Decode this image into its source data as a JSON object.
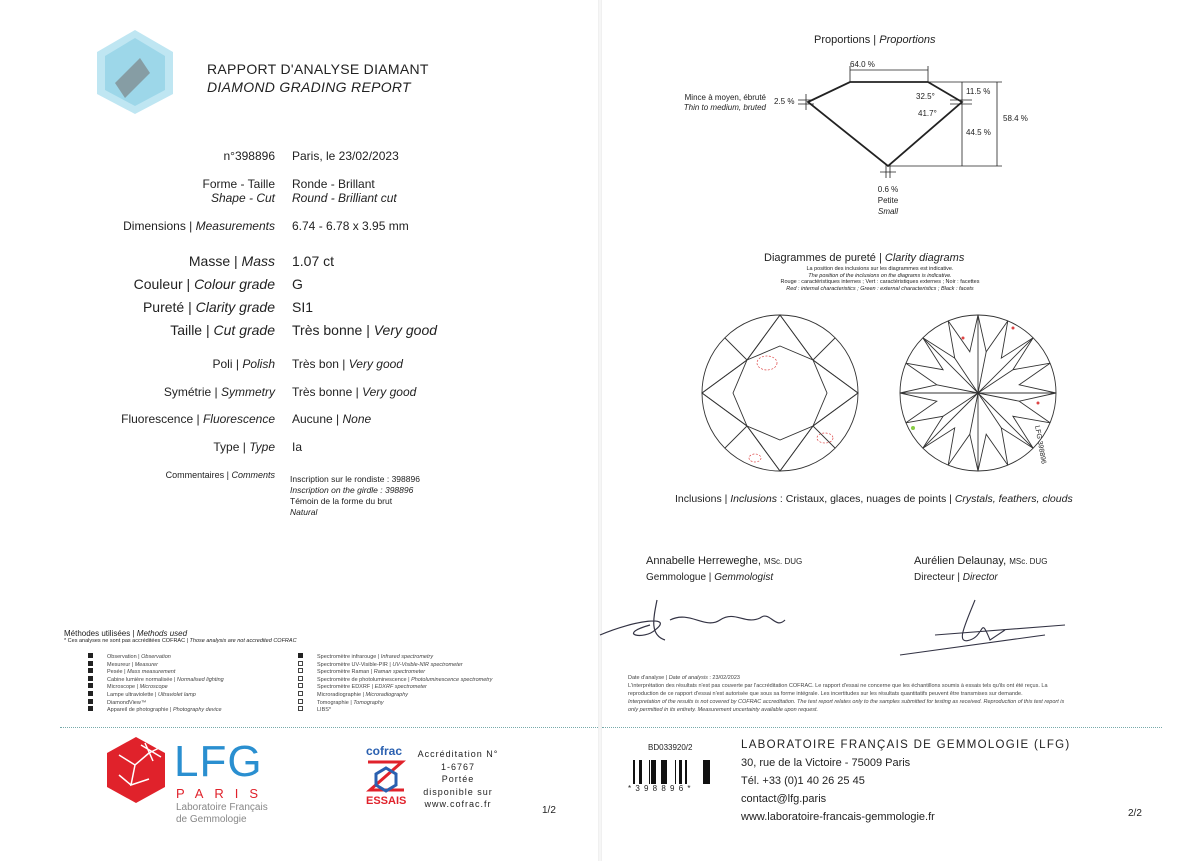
{
  "header": {
    "title_fr": "RAPPORT D'ANALYSE DIAMANT",
    "title_en": "DIAMOND GRADING REPORT"
  },
  "report": {
    "number": "n°398896",
    "place_date": "Paris, le 23/02/2023"
  },
  "fields": [
    {
      "fr": "Forme - Taille",
      "en": "Shape - Cut",
      "val_fr": "Ronde - Brillant",
      "val_en": "Round - Brilliant cut"
    },
    {
      "fr": "Dimensions |",
      "en": "Measurements",
      "val": "6.74 - 6.78 x 3.95 mm"
    },
    {
      "fr": "Masse |",
      "en": "Mass",
      "val": "1.07 ct"
    },
    {
      "fr": "Couleur |",
      "en": "Colour grade",
      "val": "G"
    },
    {
      "fr": "Pureté |",
      "en": "Clarity grade",
      "val": "SI1"
    },
    {
      "fr": "Taille |",
      "en": "Cut grade",
      "val_fr": "Très bonne |",
      "val_en": "Very good"
    },
    {
      "fr": "Poli |",
      "en": "Polish",
      "val_fr": "Très bon |",
      "val_en": "Very good"
    },
    {
      "fr": "Symétrie |",
      "en": "Symmetry",
      "val_fr": "Très bonne |",
      "val_en": "Very good"
    },
    {
      "fr": "Fluorescence |",
      "en": "Fluorescence",
      "val_fr": "Aucune |",
      "val_en": "None"
    },
    {
      "fr": "Type |",
      "en": "Type",
      "val": "Ia"
    },
    {
      "fr": "Commentaires |",
      "en": "Comments"
    }
  ],
  "comments": [
    "Inscription sur le rondiste : 398896",
    "Inscription on the girdle : 398896",
    "Témoin de la forme du brut",
    "Natural"
  ],
  "methods": {
    "title_fr": "Méthodes utilisées |",
    "title_en": "Methods used",
    "note_fr": "* Ces analyses ne sont pas accréditées COFRAC |",
    "note_en": "Those analysis are not accredited COFRAC",
    "items": [
      {
        "fr": "Observation |",
        "en": "Observation",
        "checked": true
      },
      {
        "fr": "Mesureur |",
        "en": "Measurer",
        "checked": true
      },
      {
        "fr": "Pesée |",
        "en": "Mass measurement",
        "checked": true
      },
      {
        "fr": "Cabine lumière normalisée |",
        "en": "Normalised lighting",
        "checked": true
      },
      {
        "fr": "Microscope |",
        "en": "Microscope",
        "checked": true
      },
      {
        "fr": "Lampe ultraviolette |",
        "en": "Ultraviolet lamp",
        "checked": true
      },
      {
        "fr": "DiamondView™",
        "en": "",
        "checked": true
      },
      {
        "fr": "Appareil de photographie |",
        "en": "Photography device",
        "checked": true
      },
      {
        "fr": "Spectromètre infrarouge |",
        "en": "Infrared spectrometry",
        "checked": true
      },
      {
        "fr": "Spectromètre UV-Visible-PIR |",
        "en": "UV-Visible-NIR spectrometer",
        "checked": false
      },
      {
        "fr": "Spectromètre Raman |",
        "en": "Raman spectrometer",
        "checked": false
      },
      {
        "fr": "Spectromètre de photoluminescence |",
        "en": "Photoluminescence spectrometry",
        "checked": false
      },
      {
        "fr": "Spectromètre EDXRF |",
        "en": "EDXRF spectrometer",
        "checked": false
      },
      {
        "fr": "Microradiographie |",
        "en": "Microradiography",
        "checked": false
      },
      {
        "fr": "Tomographie |",
        "en": "Tomography",
        "checked": false
      },
      {
        "fr": "LIBS*",
        "en": "",
        "checked": false
      }
    ]
  },
  "logo": {
    "lfg": "LFG",
    "paris": "PARIS",
    "lab1": "Laboratoire Français",
    "lab2": "de Gemmologie",
    "color": "#e0222b",
    "blue": "#2a8fd0"
  },
  "cofrac": {
    "brand": "cofrac",
    "essais": "ESSAIS",
    "lines": [
      "Accréditation N°",
      "1-6767",
      "Portée",
      "disponible sur",
      "www.cofrac.fr"
    ]
  },
  "page1": "1/2",
  "page2": "2/2",
  "proportions": {
    "title_fr": "Proportions |",
    "title_en": "Proportions",
    "table": "64.0 %",
    "crown_angle": "32.5°",
    "pavilion_angle": "41.7°",
    "crown_height": "11.5 %",
    "pavilion_depth": "44.5 %",
    "total_depth": "58.4 %",
    "girdle_pct": "2.5 %",
    "girdle_fr": "Mince à moyen, ébruté",
    "girdle_en": "Thin to medium, bruted",
    "culet_pct": "0.6 %",
    "culet_fr": "Petite",
    "culet_en": "Small"
  },
  "clarity": {
    "title_fr": "Diagrammes de pureté |",
    "title_en": "Clarity diagrams",
    "n1": "La position des inclusions sur les diagrammes est indicative.",
    "n2": "The position of the inclusions on the diagrams is indicative.",
    "n3": "Rouge : caractéristiques internes ; Vert : caractéristiques externes ; Noir : facettes",
    "n4": "Red : internal characteristics ; Green : external characteristics ; Black : facets",
    "girdle_text": "LFG 398896",
    "inc_label_fr": "Inclusions |",
    "inc_label_en": "Inclusions",
    "inc_fr": ": Cristaux, glaces, nuages de points |",
    "inc_en": "Crystals, feathers, clouds"
  },
  "signers": [
    {
      "name": "Annabelle Herreweghe,",
      "deg": "MSc. DUG",
      "role_fr": "Gemmologue |",
      "role_en": "Gemmologist"
    },
    {
      "name": "Aurélien Delaunay,",
      "deg": "MSc. DUG",
      "role_fr": "Directeur |",
      "role_en": "Director"
    }
  ],
  "legal": {
    "date_fr": "Date d'analyse |",
    "date_en": "Date of analysis",
    "date": ": 23/02/2023",
    "l1": "L'interprétation des résultats n'est pas couverte par l'accréditation COFRAC. Le rapport d'essai ne concerne que les échantillons soumis à essais tels qu'ils ont été reçus. La",
    "l2": "reproduction de ce rapport d'essai n'est autorisée que sous sa forme intégrale. Les incertitudes sur les résultats quantitatifs peuvent être transmises sur demande.",
    "l3": "Interpretation of the results is not covered by COFRAC accreditation. The test report relates only to the samples submitted for testing as received. Reproduction of this test report is",
    "l4": "only permitted in its entirety. Measurement uncertainty available upon request."
  },
  "footer": {
    "code": "BD033920/2",
    "barcode_text": "* 3 9 8 8 9 6 *",
    "lab": "LABORATOIRE FRANÇAIS DE GEMMOLOGIE (LFG)",
    "addr": "30, rue de la Victoire - 75009 Paris",
    "tel": "Tél. +33 (0)1 40 26 25 45",
    "email": "contact@lfg.paris",
    "web": "www.laboratoire-francais-gemmologie.fr"
  }
}
